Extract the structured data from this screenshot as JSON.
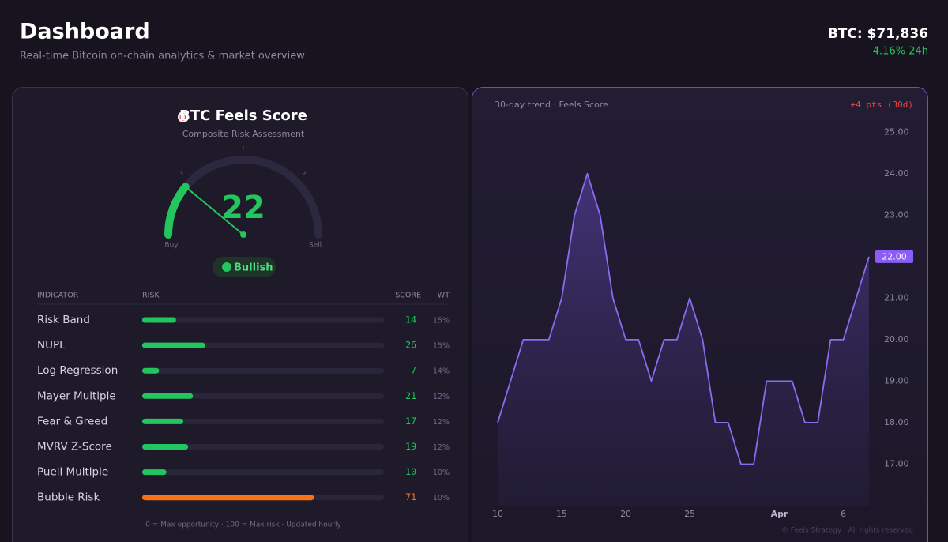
{
  "header": {
    "title": "Dashboard",
    "subtitle": "Real-time Bitcoin on-chain analytics & market overview",
    "price": "BTC: $71,836",
    "change": "4.16% 24h"
  },
  "score_card": {
    "title": "BTC Feels Score",
    "subtitle": "Composite Risk Assessment",
    "score": 22,
    "range": [
      0,
      100
    ],
    "low_label": "Buy",
    "high_label": "Sell",
    "status": "Bullish",
    "color": "#22c55e"
  },
  "table": {
    "columns": [
      "INDICATOR",
      "RISK",
      "SCORE",
      "WT"
    ],
    "rows": [
      {
        "name": "Risk Band",
        "score": 14,
        "weight": "15%",
        "color": "#22c55e"
      },
      {
        "name": "NUPL",
        "score": 26,
        "weight": "15%",
        "color": "#22c55e"
      },
      {
        "name": "Log Regression",
        "score": 7,
        "weight": "14%",
        "color": "#22c55e"
      },
      {
        "name": "Mayer Multiple",
        "score": 21,
        "weight": "12%",
        "color": "#22c55e"
      },
      {
        "name": "Fear & Greed",
        "score": 17,
        "weight": "12%",
        "color": "#22c55e"
      },
      {
        "name": "MVRV Z-Score",
        "score": 19,
        "weight": "12%",
        "color": "#22c55e"
      },
      {
        "name": "Puell Multiple",
        "score": 10,
        "weight": "10%",
        "color": "#22c55e"
      },
      {
        "name": "Bubble Risk",
        "score": 71,
        "weight": "10%",
        "color": "#f97316"
      }
    ],
    "footnote": "0 = Max opportunity · 100 = Max risk · Updated hourly"
  },
  "chart_data": {
    "type": "line",
    "title": "30-day trend · Feels Score",
    "annotation": "+4 pts (30d)",
    "current_label": "22.00",
    "color": "#8b6cf0",
    "categories": [
      "10",
      null,
      null,
      null,
      null,
      "15",
      null,
      null,
      null,
      null,
      "20",
      null,
      null,
      null,
      null,
      "25",
      null,
      null,
      null,
      null,
      null,
      null,
      "Apr",
      null,
      null,
      null,
      null,
      "6",
      null,
      null
    ],
    "values": [
      18,
      19,
      20,
      20,
      20,
      21,
      23,
      24,
      23,
      21,
      20,
      20,
      19,
      20,
      20,
      21,
      20,
      18,
      18,
      17,
      17,
      19,
      19,
      19,
      18,
      18,
      20,
      20,
      21,
      22
    ],
    "ylim": [
      16,
      25.5
    ],
    "yticks": [
      {
        "value": 17,
        "label": "17.00"
      },
      {
        "value": 18,
        "label": "18.00"
      },
      {
        "value": 19,
        "label": "19.00"
      },
      {
        "value": 20,
        "label": "20.00"
      },
      {
        "value": 21,
        "label": "21.00"
      },
      {
        "value": 22,
        "label": "22.00"
      },
      {
        "value": 23,
        "label": "23.00"
      },
      {
        "value": 24,
        "label": "24.00"
      },
      {
        "value": 25,
        "label": "25.00"
      }
    ],
    "footer": "© Feels Strategy · All rights reserved"
  }
}
